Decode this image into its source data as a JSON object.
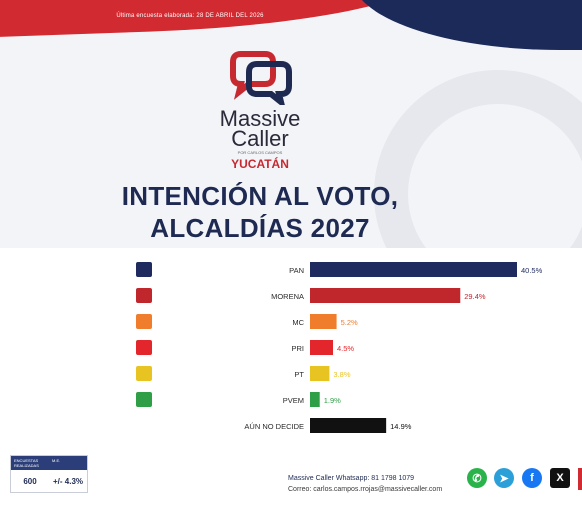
{
  "header": {
    "survey_date": "Última encuesta elaborada: 28 DE ABRIL DEL 2026",
    "brand_line1": "Massive",
    "brand_line2": "Caller",
    "brand_tagline": "POR CARLOS CAMPOS",
    "region": "YUCATÁN",
    "title_line1": "INTENCIÓN AL VOTO,",
    "title_line2": "ALCALDÍAS 2027"
  },
  "colors": {
    "brand_red": "#d12a31",
    "brand_navy": "#1c2a5a"
  },
  "chart_data": {
    "type": "bar",
    "orientation": "horizontal",
    "categories": [
      "PAN",
      "MORENA",
      "MC",
      "PRI",
      "PT",
      "PVEM",
      "AÚN NO DECIDE"
    ],
    "values": [
      40.5,
      29.4,
      5.2,
      4.5,
      3.8,
      1.9,
      14.9
    ],
    "value_labels": [
      "40.5%",
      "29.4%",
      "5.2%",
      "4.5%",
      "3.8%",
      "1.9%",
      "14.9%"
    ],
    "colors": [
      "#1f2a5e",
      "#c0272d",
      "#ef7d2c",
      "#e3262b",
      "#e8c422",
      "#2e9e47",
      "#111111"
    ],
    "icons": [
      "pan-logo-icon",
      "morena-logo-icon",
      "mc-logo-icon",
      "pri-logo-icon",
      "pt-logo-icon",
      "pvem-logo-icon",
      null
    ],
    "xlim": [
      0,
      45
    ],
    "grid": false,
    "legend": "none"
  },
  "footer": {
    "table_headers": [
      "ENCUESTAS REALIZADAS",
      "M.E."
    ],
    "table_values": [
      "600",
      "+/- 4.3%"
    ],
    "contact_line1": "Massive Caller Whatsapp: 81 1798 1079",
    "contact_line2": "Correo: carlos.campos.rrojas@massivecaller.com",
    "social_icons": [
      "whatsapp-icon",
      "telegram-icon",
      "facebook-icon",
      "x-icon"
    ]
  }
}
